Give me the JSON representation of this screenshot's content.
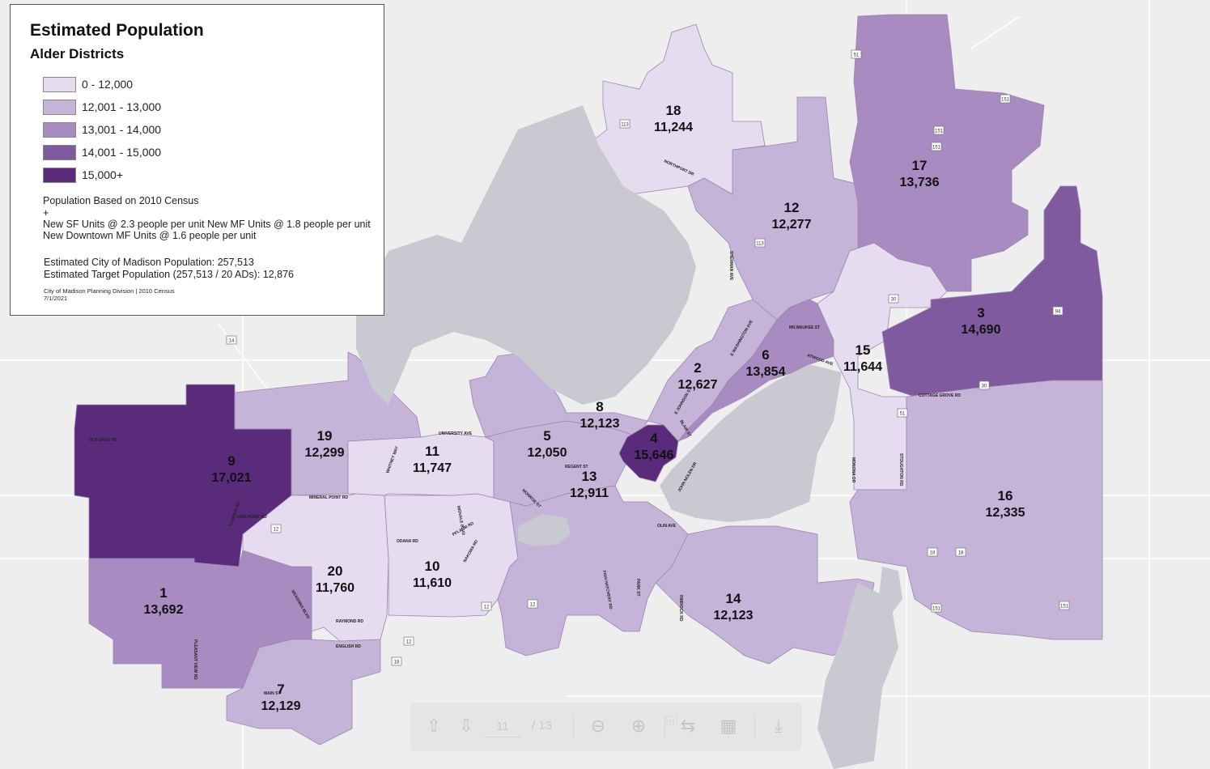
{
  "legend": {
    "title": "Estimated Population",
    "subtitle": "Alder Districts",
    "classes": [
      {
        "label": "0 - 12,000",
        "color": "#e5dcf0"
      },
      {
        "label": "12,001 - 13,000",
        "color": "#c6b3d8"
      },
      {
        "label": "13,001 - 14,000",
        "color": "#a88bc0"
      },
      {
        "label": "14,001 - 15,000",
        "color": "#7f5a9f"
      },
      {
        "label": "15,000+",
        "color": "#5a2b7a"
      }
    ],
    "notes": [
      "Population Based on 2010 Census",
      "+",
      "New SF Units @ 2.3 people per unit New MF Units @ 1.8 people per unit",
      "New Downtown MF Units @ 1.6 people per unit"
    ],
    "estimates": [
      "Estimated City of Madison Population: 257,513",
      "Estimated Target Population (257,513 / 20 ADs): 12,876"
    ],
    "credit": "City of Madison Planning Division | 2010 Census",
    "date": "7/1/2021"
  },
  "districts": [
    {
      "id": "1",
      "population": "13,692",
      "class": 2
    },
    {
      "id": "2",
      "population": "12,627",
      "class": 1
    },
    {
      "id": "3",
      "population": "14,690",
      "class": 3
    },
    {
      "id": "4",
      "population": "15,646",
      "class": 4
    },
    {
      "id": "5",
      "population": "12,050",
      "class": 1
    },
    {
      "id": "6",
      "population": "13,854",
      "class": 2
    },
    {
      "id": "7",
      "population": "12,129",
      "class": 1
    },
    {
      "id": "8",
      "population": "12,123",
      "class": 1
    },
    {
      "id": "9",
      "population": "17,021",
      "class": 4
    },
    {
      "id": "10",
      "population": "11,610",
      "class": 0
    },
    {
      "id": "11",
      "population": "11,747",
      "class": 0
    },
    {
      "id": "12",
      "population": "12,277",
      "class": 1
    },
    {
      "id": "13",
      "population": "12,911",
      "class": 1
    },
    {
      "id": "14",
      "population": "12,123",
      "class": 1
    },
    {
      "id": "15",
      "population": "11,644",
      "class": 0
    },
    {
      "id": "16",
      "population": "12,335",
      "class": 1
    },
    {
      "id": "17",
      "population": "13,736",
      "class": 2
    },
    {
      "id": "18",
      "population": "11,244",
      "class": 0
    },
    {
      "id": "19",
      "population": "12,299",
      "class": 1
    },
    {
      "id": "20",
      "population": "11,760",
      "class": 0
    }
  ],
  "roads": [
    "UNIVERSITY AVE",
    "MINERAL POINT RD",
    "REGENT ST",
    "MONROE ST",
    "ODANA RD",
    "RAYMOND RD",
    "MILWAUKEE ST",
    "ATWOOD AVE",
    "COTTAGE GROVE RD",
    "NORTHPORT DR",
    "PFLAUM RD",
    "OLIN AVE",
    "PARK ST",
    "JOHN NOLEN DR",
    "E JOHNSON ST",
    "BLAIR ST",
    "WHITNEY WAY",
    "MIDVALE BLVD",
    "NAKOMA RD",
    "MCKENNA BLVD",
    "PLEASANT VIEW RD",
    "SHERMAN AVE",
    "STOUGHTON RD",
    "MONONA DR",
    "RIMROCK RD",
    "FISH HATCHERY RD",
    "E WASHINGTON AVE",
    "GAMMON RD",
    "OLD SAUK RD",
    "HIGH POINT RD",
    "ENGLISH RD",
    "MAIN ST"
  ],
  "highways": [
    "113",
    "113",
    "151",
    "151",
    "151",
    "30",
    "94",
    "30",
    "51",
    "14",
    "12",
    "12",
    "12",
    "18",
    "18",
    "151",
    "14",
    "12",
    "18",
    "151",
    "51"
  ],
  "toolbar": {
    "page_value": "11",
    "page_total": "/ 13",
    "prev_icon": "arrow-up-icon",
    "next_icon": "arrow-down-icon",
    "zoom_out_icon": "zoom-out-icon",
    "zoom_in_icon": "zoom-in-icon",
    "rotate_icon": "rotate-icon",
    "fit_icon": "fit-page-icon",
    "download_icon": "download-icon"
  }
}
